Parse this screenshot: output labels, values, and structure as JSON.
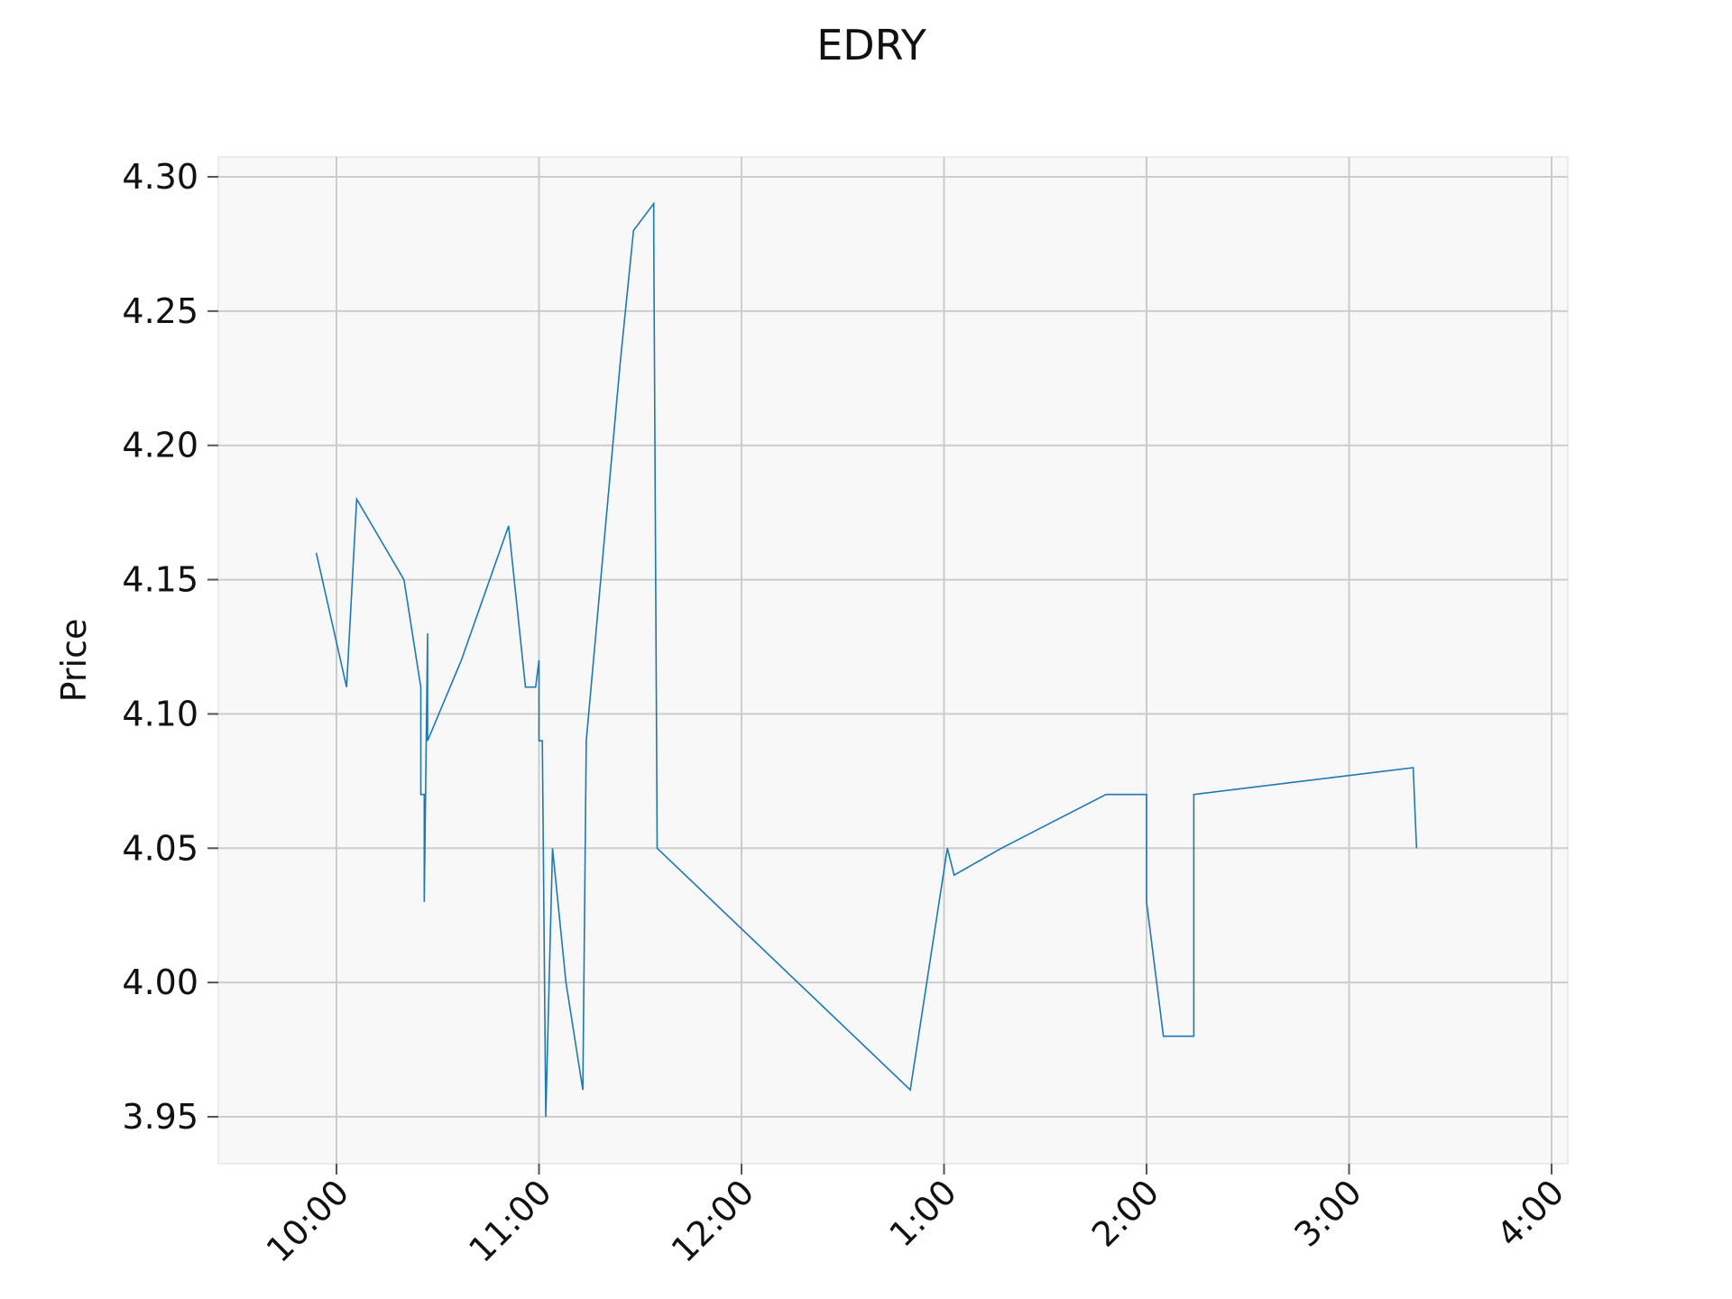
{
  "chart_data": {
    "type": "line",
    "title": "EDRY",
    "xlabel": "",
    "ylabel": "Price",
    "x_ticks": [
      "10:00",
      "11:00",
      "12:00",
      "1:00",
      "2:00",
      "3:00",
      "4:00"
    ],
    "y_ticks": [
      "3.95",
      "4.00",
      "4.05",
      "4.10",
      "4.15",
      "4.20",
      "4.25",
      "4.30"
    ],
    "ylim": [
      3.933,
      4.307
    ],
    "grid": true,
    "line_color": "#1f77b4",
    "series": [
      {
        "x": [
          "09:54",
          "10:03",
          "10:06",
          "10:20",
          "10:25",
          "10:25",
          "10:26",
          "10:26",
          "10:27",
          "10:27",
          "10:37",
          "10:51",
          "10:56",
          "10:59",
          "11:00",
          "11:00",
          "11:01",
          "11:02",
          "11:04",
          "11:08",
          "11:13",
          "11:14",
          "11:24",
          "11:28",
          "11:34",
          "11:34",
          "11:35",
          "12:50",
          "13:01",
          "13:03",
          "13:17",
          "13:48",
          "14:00",
          "14:00",
          "14:05",
          "14:14",
          "14:14",
          "15:19",
          "15:20"
        ],
        "values": [
          4.16,
          4.11,
          4.18,
          4.15,
          4.11,
          4.07,
          4.07,
          4.03,
          4.13,
          4.09,
          4.12,
          4.17,
          4.11,
          4.11,
          4.12,
          4.09,
          4.09,
          3.95,
          4.05,
          4.0,
          3.96,
          4.09,
          4.23,
          4.28,
          4.29,
          4.28,
          4.05,
          3.96,
          4.05,
          4.04,
          4.05,
          4.07,
          4.07,
          4.03,
          3.98,
          3.98,
          4.07,
          4.08,
          4.05
        ]
      }
    ]
  }
}
